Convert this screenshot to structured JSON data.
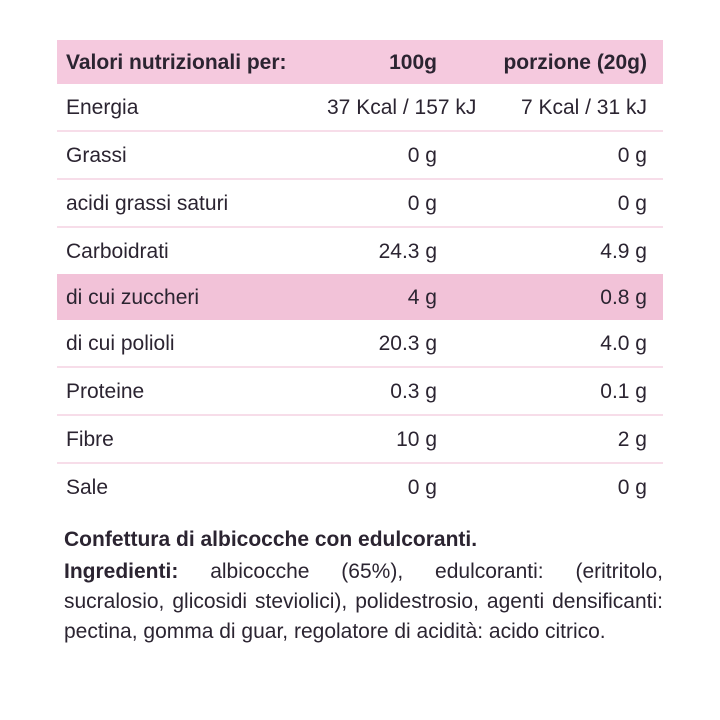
{
  "table": {
    "header": {
      "label": "Valori nutrizionali per:",
      "col_100g": "100g",
      "col_portion": "porzione (20g)"
    },
    "rows": [
      {
        "label": "Energia",
        "per_100g": "37 Kcal / 157 kJ",
        "per_portion": "7 Kcal / 31 kJ",
        "highlight": false
      },
      {
        "label": "Grassi",
        "per_100g": "0 g",
        "per_portion": "0 g",
        "highlight": false
      },
      {
        "label": "acidi grassi saturi",
        "per_100g": "0 g",
        "per_portion": "0 g",
        "highlight": false
      },
      {
        "label": "Carboidrati",
        "per_100g": "24.3 g",
        "per_portion": "4.9 g",
        "highlight": false
      },
      {
        "label": "di cui zuccheri",
        "per_100g": "4 g",
        "per_portion": "0.8 g",
        "highlight": true
      },
      {
        "label": "di cui polioli",
        "per_100g": "20.3 g",
        "per_portion": "4.0 g",
        "highlight": false
      },
      {
        "label": "Proteine",
        "per_100g": "0.3 g",
        "per_portion": "0.1 g",
        "highlight": false
      },
      {
        "label": "Fibre",
        "per_100g": "10 g",
        "per_portion": "2 g",
        "highlight": false
      },
      {
        "label": "Sale",
        "per_100g": "0 g",
        "per_portion": "0 g",
        "highlight": false
      }
    ]
  },
  "description": {
    "title": "Confettura di albicocche con edulcoranti.",
    "ingredients_label": "Ingredienti:",
    "ingredients_text": " albicocche (65%), edulcoranti: (eritritolo, sucralosio, glicosidi steviolici), polidestrosio, agenti densificanti: pectina, gomma di guar, regolatore di acidità: acido citrico."
  },
  "colors": {
    "pink": "#f5c9de",
    "highlight": "#f2c2d8",
    "divider": "#f7dde9",
    "text": "#2b2431",
    "background": "#ffffff"
  }
}
